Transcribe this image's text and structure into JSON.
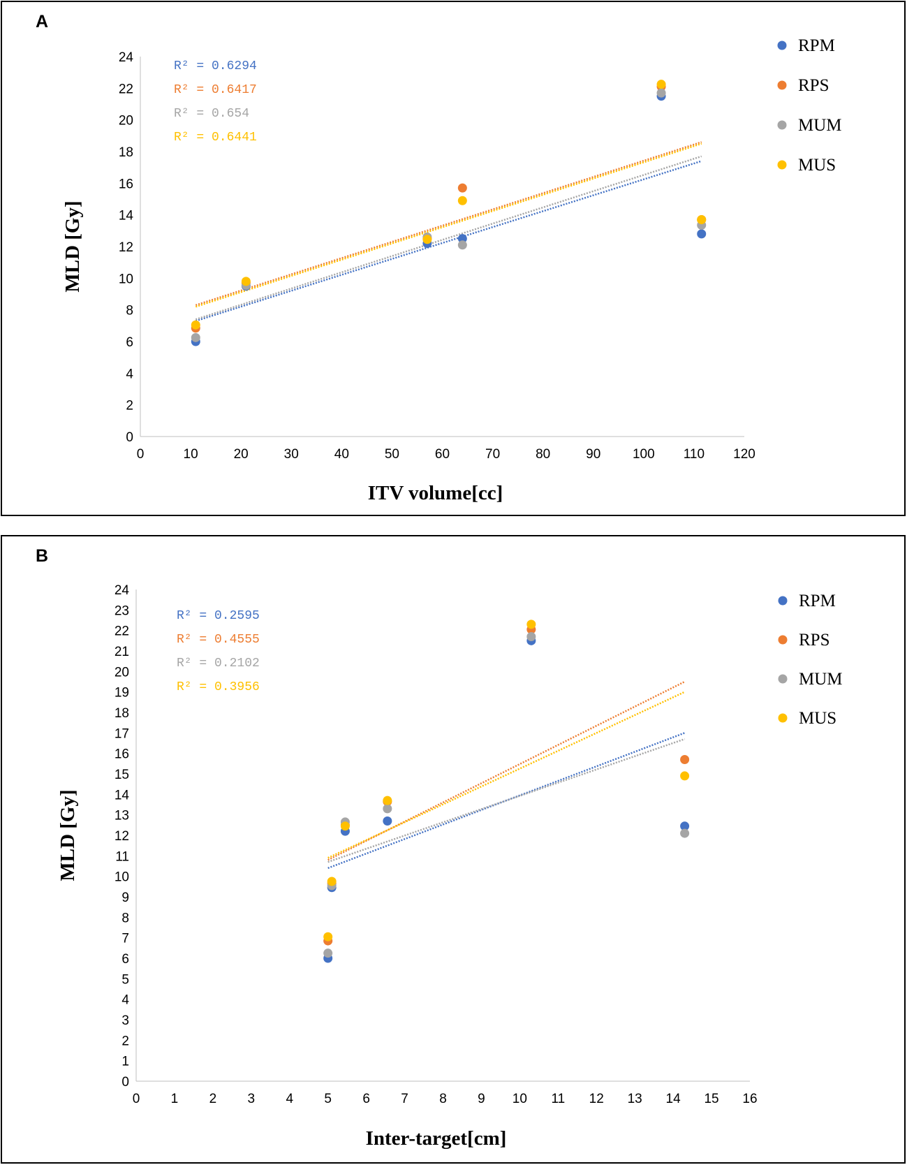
{
  "chart_data": [
    {
      "type": "scatter",
      "panel_label": "A",
      "xlabel": "ITV volume[cc]",
      "ylabel": "MLD [Gy]",
      "xlim": [
        0,
        120
      ],
      "ylim": [
        0,
        24
      ],
      "xticks": [
        0,
        10,
        20,
        30,
        40,
        50,
        60,
        70,
        80,
        90,
        100,
        110,
        120
      ],
      "yticks": [
        0,
        2,
        4,
        6,
        8,
        10,
        12,
        14,
        16,
        18,
        20,
        22,
        24
      ],
      "legend_position": "top-right",
      "series": [
        {
          "name": "RPM",
          "color": "#4472c4",
          "x": [
            11,
            21,
            57,
            64,
            103.5,
            111.5
          ],
          "y": [
            6.0,
            9.5,
            12.2,
            12.5,
            21.5,
            12.8
          ],
          "trendline": {
            "x": [
              11,
              111.5
            ],
            "y": [
              7.3,
              17.4
            ]
          },
          "r2": "R² = 0.6294"
        },
        {
          "name": "RPS",
          "color": "#ed7d31",
          "x": [
            11,
            21,
            57,
            64,
            103.5,
            111.5
          ],
          "y": [
            6.85,
            9.7,
            12.5,
            15.7,
            22.1,
            13.7
          ],
          "trendline": {
            "x": [
              11,
              111.5
            ],
            "y": [
              8.3,
              18.6
            ]
          },
          "r2": "R² = 0.6417"
        },
        {
          "name": "MUM",
          "color": "#a5a5a5",
          "x": [
            11,
            21,
            57,
            64,
            103.5,
            111.5
          ],
          "y": [
            6.25,
            9.55,
            12.6,
            12.1,
            21.7,
            13.35
          ],
          "trendline": {
            "x": [
              11,
              111.5
            ],
            "y": [
              7.4,
              17.7
            ]
          },
          "r2": "R² = 0.654"
        },
        {
          "name": "MUS",
          "color": "#ffc000",
          "x": [
            11,
            21,
            57,
            64,
            103.5,
            111.5
          ],
          "y": [
            7.05,
            9.8,
            12.45,
            14.9,
            22.25,
            13.7
          ],
          "trendline": {
            "x": [
              11,
              111.5
            ],
            "y": [
              8.2,
              18.5
            ]
          },
          "r2": "R² = 0.6441"
        }
      ]
    },
    {
      "type": "scatter",
      "panel_label": "B",
      "xlabel": "Inter-target[cm]",
      "ylabel": "MLD [Gy]",
      "xlim": [
        0,
        16
      ],
      "ylim": [
        0,
        24
      ],
      "xticks": [
        0,
        1,
        2,
        3,
        4,
        5,
        6,
        7,
        8,
        9,
        10,
        11,
        12,
        13,
        14,
        15,
        16
      ],
      "yticks": [
        0,
        1,
        2,
        3,
        4,
        5,
        6,
        7,
        8,
        9,
        10,
        11,
        12,
        13,
        14,
        15,
        16,
        17,
        18,
        19,
        20,
        21,
        22,
        23,
        24
      ],
      "legend_position": "top-right",
      "series": [
        {
          "name": "RPM",
          "color": "#4472c4",
          "x": [
            5.0,
            5.1,
            5.45,
            6.55,
            10.3,
            14.3
          ],
          "y": [
            6.0,
            9.45,
            12.2,
            12.7,
            21.5,
            12.45
          ],
          "trendline": {
            "x": [
              5.0,
              14.3
            ],
            "y": [
              10.4,
              17.0
            ]
          },
          "r2": "R² = 0.2595"
        },
        {
          "name": "RPS",
          "color": "#ed7d31",
          "x": [
            5.0,
            5.1,
            5.45,
            6.55,
            10.3,
            14.3
          ],
          "y": [
            6.85,
            9.65,
            12.5,
            13.65,
            22.05,
            15.7
          ],
          "trendline": {
            "x": [
              5.0,
              14.3
            ],
            "y": [
              10.8,
              19.5
            ]
          },
          "r2": "R² = 0.4555"
        },
        {
          "name": "MUM",
          "color": "#a5a5a5",
          "x": [
            5.0,
            5.1,
            5.45,
            6.55,
            10.3,
            14.3
          ],
          "y": [
            6.25,
            9.55,
            12.65,
            13.3,
            21.7,
            12.1
          ],
          "trendline": {
            "x": [
              5.0,
              14.3
            ],
            "y": [
              10.7,
              16.7
            ]
          },
          "r2": "R² = 0.2102"
        },
        {
          "name": "MUS",
          "color": "#ffc000",
          "x": [
            5.0,
            5.1,
            5.45,
            6.55,
            10.3,
            14.3
          ],
          "y": [
            7.05,
            9.75,
            12.45,
            13.7,
            22.3,
            14.9
          ],
          "trendline": {
            "x": [
              5.0,
              14.3
            ],
            "y": [
              10.9,
              19.0
            ]
          },
          "r2": "R² = 0.3956"
        }
      ]
    }
  ]
}
